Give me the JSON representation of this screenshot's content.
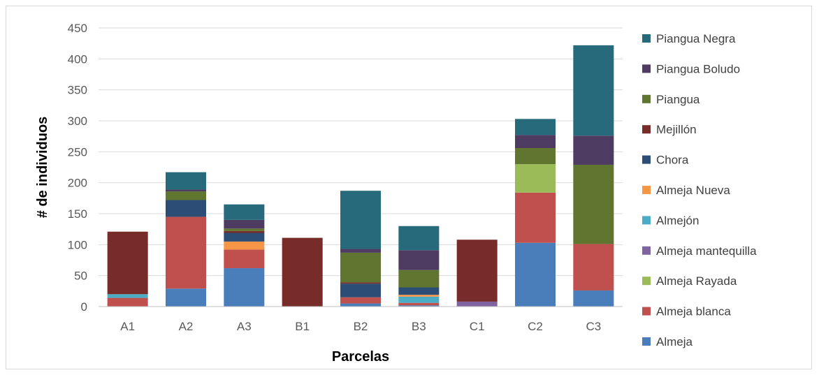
{
  "chart_data": {
    "type": "bar",
    "stacked": true,
    "title": "",
    "xlabel": "Parcelas",
    "ylabel": "# de individuos",
    "ylim": [
      0,
      450
    ],
    "yticks": [
      0,
      50,
      100,
      150,
      200,
      250,
      300,
      350,
      400,
      450
    ],
    "grid": true,
    "legend_position": "right",
    "categories": [
      "A1",
      "A2",
      "A3",
      "B1",
      "B2",
      "B3",
      "C1",
      "C2",
      "C3"
    ],
    "series": [
      {
        "name": "Almeja",
        "color": "#4a7ebb",
        "values": [
          0,
          29,
          62,
          0,
          5,
          2,
          0,
          103,
          26
        ]
      },
      {
        "name": "Almeja blanca",
        "color": "#c0504d",
        "values": [
          14,
          116,
          30,
          0,
          10,
          4,
          0,
          81,
          75
        ]
      },
      {
        "name": "Almeja Rayada",
        "color": "#9bbb59",
        "values": [
          0,
          0,
          0,
          0,
          0,
          0,
          0,
          46,
          0
        ]
      },
      {
        "name": "Almeja mantequilla",
        "color": "#8064a2",
        "values": [
          0,
          0,
          0,
          0,
          0,
          0,
          8,
          0,
          0
        ]
      },
      {
        "name": "Almejón",
        "color": "#4bacc6",
        "values": [
          6,
          0,
          0,
          0,
          0,
          10,
          0,
          0,
          0
        ]
      },
      {
        "name": "Almeja Nueva",
        "color": "#f79646",
        "values": [
          0,
          0,
          13,
          0,
          0,
          3,
          0,
          0,
          0
        ]
      },
      {
        "name": "Chora",
        "color": "#2c4d75",
        "values": [
          0,
          27,
          14,
          0,
          22,
          12,
          0,
          0,
          0
        ]
      },
      {
        "name": "Mejillón",
        "color": "#772c2a",
        "values": [
          101,
          0,
          3,
          111,
          2,
          0,
          100,
          0,
          0
        ]
      },
      {
        "name": "Piangua",
        "color": "#5f7530",
        "values": [
          0,
          14,
          4,
          0,
          48,
          28,
          0,
          26,
          128
        ]
      },
      {
        "name": "Piangua Boludo",
        "color": "#4d3b62",
        "values": [
          0,
          3,
          14,
          0,
          6,
          32,
          0,
          21,
          47
        ]
      },
      {
        "name": "Piangua Negra",
        "color": "#276a7c",
        "values": [
          0,
          28,
          25,
          0,
          94,
          39,
          0,
          26,
          146
        ]
      }
    ]
  }
}
